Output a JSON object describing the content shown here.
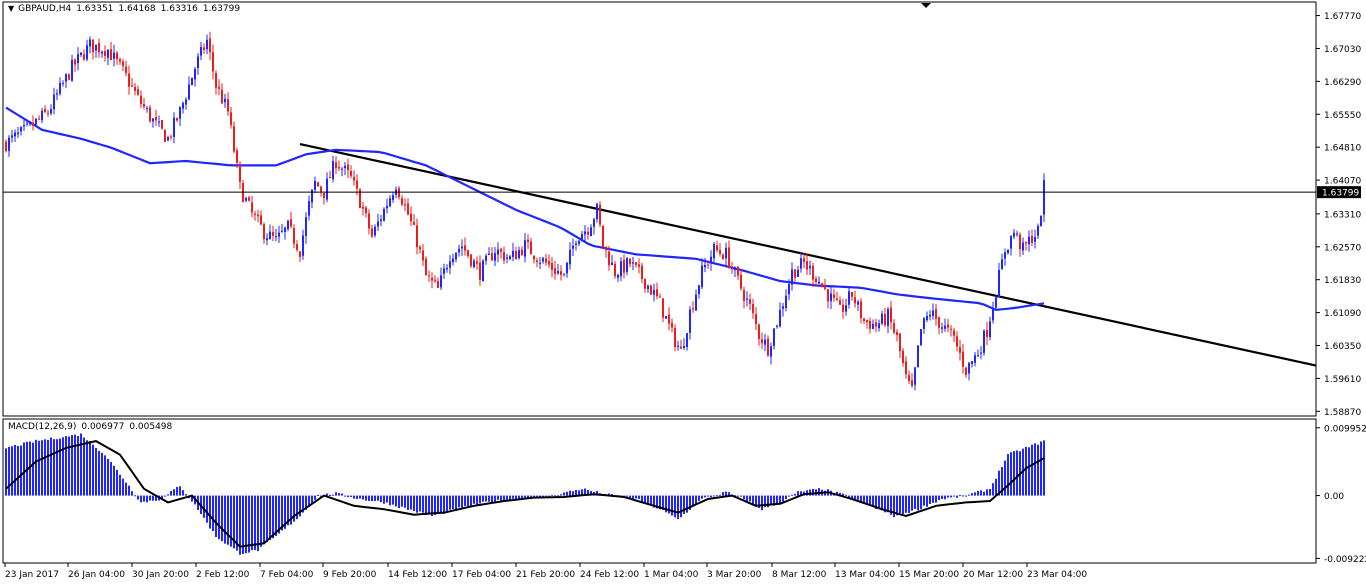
{
  "instrument": {
    "symbol_tf": "GBPAUD,H4",
    "open": "1.63351",
    "high": "1.64168",
    "low": "1.63316",
    "close": "1.63799"
  },
  "macd": {
    "label": "MACD(12,26,9)",
    "main": "0.006977",
    "signal": "0.005498"
  },
  "colors": {
    "bull": "#1f26ff",
    "bear": "#ef1c1c",
    "ma": "#1f26ff",
    "trendline": "#000000",
    "histogram": "#1f26ff",
    "signal": "#000000",
    "grid": "#000000"
  },
  "chart_data": {
    "type": "candlestick",
    "current_price": "1.63799",
    "price_axis": {
      "ticks": [
        "1.67770",
        "1.67030",
        "1.66290",
        "1.65550",
        "1.64810",
        "1.64070",
        "1.63310",
        "1.62570",
        "1.61830",
        "1.61090",
        "1.60350",
        "1.59610",
        "1.58870"
      ],
      "range": [
        1.5881,
        1.6803
      ]
    },
    "macd_axis": {
      "ticks": [
        "0.009952",
        "0.00",
        "-0.009222"
      ],
      "range": [
        -0.0096,
        0.0108
      ]
    },
    "time_axis": [
      "23 Jan 2017",
      "26 Jan 04:00",
      "30 Jan 20:00",
      "2 Feb 12:00",
      "7 Feb 04:00",
      "9 Feb 20:00",
      "14 Feb 12:00",
      "17 Feb 04:00",
      "21 Feb 20:00",
      "24 Feb 12:00",
      "1 Mar 04:00",
      "3 Mar 20:00",
      "8 Mar 12:00",
      "13 Mar 04:00",
      "15 Mar 20:00",
      "20 Mar 12:00",
      "23 Mar 04:00"
    ],
    "price_path": [
      [
        0,
        1.649
      ],
      [
        7,
        1.652
      ],
      [
        14,
        1.656
      ],
      [
        22,
        1.666
      ],
      [
        28,
        1.671
      ],
      [
        34,
        1.67
      ],
      [
        40,
        1.664
      ],
      [
        44,
        1.659
      ],
      [
        50,
        1.653
      ],
      [
        54,
        1.65
      ],
      [
        58,
        1.656
      ],
      [
        63,
        1.666
      ],
      [
        67,
        1.672
      ],
      [
        70,
        1.662
      ],
      [
        74,
        1.656
      ],
      [
        78,
        1.639
      ],
      [
        82,
        1.633
      ],
      [
        86,
        1.629
      ],
      [
        90,
        1.627
      ],
      [
        94,
        1.63
      ],
      [
        98,
        1.625
      ],
      [
        101,
        1.635
      ],
      [
        103,
        1.64
      ],
      [
        106,
        1.638
      ],
      [
        110,
        1.645
      ],
      [
        115,
        1.641
      ],
      [
        118,
        1.636
      ],
      [
        122,
        1.628
      ],
      [
        126,
        1.634
      ],
      [
        130,
        1.64
      ],
      [
        134,
        1.633
      ],
      [
        137,
        1.627
      ],
      [
        140,
        1.619
      ],
      [
        144,
        1.616
      ],
      [
        148,
        1.624
      ],
      [
        152,
        1.626
      ],
      [
        158,
        1.62
      ],
      [
        163,
        1.625
      ],
      [
        168,
        1.623
      ],
      [
        173,
        1.626
      ],
      [
        178,
        1.623
      ],
      [
        182,
        1.621
      ],
      [
        186,
        1.619
      ],
      [
        190,
        1.628
      ],
      [
        194,
        1.63
      ],
      [
        197,
        1.634
      ],
      [
        199,
        1.626
      ],
      [
        203,
        1.62
      ],
      [
        208,
        1.622
      ],
      [
        213,
        1.618
      ],
      [
        218,
        1.613
      ],
      [
        222,
        1.606
      ],
      [
        225,
        1.602
      ],
      [
        228,
        1.611
      ],
      [
        232,
        1.62
      ],
      [
        236,
        1.625
      ],
      [
        240,
        1.624
      ],
      [
        244,
        1.618
      ],
      [
        248,
        1.612
      ],
      [
        251,
        1.606
      ],
      [
        254,
        1.603
      ],
      [
        258,
        1.611
      ],
      [
        262,
        1.62
      ],
      [
        266,
        1.622
      ],
      [
        270,
        1.619
      ],
      [
        274,
        1.615
      ],
      [
        278,
        1.611
      ],
      [
        282,
        1.615
      ],
      [
        286,
        1.609
      ],
      [
        290,
        1.608
      ],
      [
        294,
        1.61
      ],
      [
        297,
        1.605
      ],
      [
        300,
        1.596
      ],
      [
        302,
        1.593
      ],
      [
        305,
        1.607
      ],
      [
        308,
        1.611
      ],
      [
        312,
        1.608
      ],
      [
        316,
        1.605
      ],
      [
        320,
        1.598
      ],
      [
        324,
        1.602
      ],
      [
        327,
        1.607
      ],
      [
        330,
        1.616
      ],
      [
        333,
        1.625
      ],
      [
        336,
        1.629
      ],
      [
        339,
        1.625
      ],
      [
        342,
        1.628
      ],
      [
        344,
        1.629
      ],
      [
        346,
        1.639
      ]
    ],
    "ma_path": [
      [
        0,
        1.657
      ],
      [
        12,
        1.652
      ],
      [
        25,
        1.65
      ],
      [
        35,
        1.648
      ],
      [
        48,
        1.6445
      ],
      [
        60,
        1.645
      ],
      [
        75,
        1.644
      ],
      [
        90,
        1.644
      ],
      [
        100,
        1.6465
      ],
      [
        110,
        1.6475
      ],
      [
        125,
        1.647
      ],
      [
        140,
        1.644
      ],
      [
        155,
        1.639
      ],
      [
        170,
        1.634
      ],
      [
        185,
        1.63
      ],
      [
        195,
        1.626
      ],
      [
        210,
        1.624
      ],
      [
        230,
        1.623
      ],
      [
        245,
        1.6205
      ],
      [
        258,
        1.618
      ],
      [
        270,
        1.617
      ],
      [
        285,
        1.6165
      ],
      [
        297,
        1.615
      ],
      [
        310,
        1.614
      ],
      [
        325,
        1.613
      ],
      [
        330,
        1.6115
      ],
      [
        337,
        1.612
      ],
      [
        346,
        1.613
      ]
    ],
    "trendline": {
      "from": [
        "7 Feb 04:00",
        1.6488
      ],
      "to": [
        "23 Mar 04:00+",
        1.599
      ]
    },
    "macd_histogram_path": [
      [
        0,
        0.007
      ],
      [
        10,
        0.008
      ],
      [
        25,
        0.009
      ],
      [
        33,
        0.006
      ],
      [
        40,
        0.002
      ],
      [
        45,
        -0.001
      ],
      [
        52,
        -0.0005
      ],
      [
        58,
        0.0015
      ],
      [
        64,
        -0.002
      ],
      [
        70,
        -0.006
      ],
      [
        78,
        -0.0085
      ],
      [
        84,
        -0.008
      ],
      [
        90,
        -0.006
      ],
      [
        98,
        -0.003
      ],
      [
        104,
        0.0
      ],
      [
        110,
        0.0003
      ],
      [
        118,
        -0.0005
      ],
      [
        126,
        -0.001
      ],
      [
        134,
        -0.002
      ],
      [
        142,
        -0.003
      ],
      [
        150,
        -0.002
      ],
      [
        160,
        -0.001
      ],
      [
        170,
        -0.0005
      ],
      [
        182,
        0.0
      ],
      [
        192,
        0.001
      ],
      [
        200,
        0.0002
      ],
      [
        210,
        -0.0005
      ],
      [
        218,
        -0.002
      ],
      [
        224,
        -0.0035
      ],
      [
        232,
        -0.0005
      ],
      [
        240,
        0.0005
      ],
      [
        246,
        -0.0005
      ],
      [
        252,
        -0.002
      ],
      [
        258,
        -0.001
      ],
      [
        264,
        0.0005
      ],
      [
        272,
        0.001
      ],
      [
        280,
        0.0
      ],
      [
        288,
        -0.0015
      ],
      [
        296,
        -0.003
      ],
      [
        304,
        -0.002
      ],
      [
        312,
        -0.0005
      ],
      [
        320,
        0.0
      ],
      [
        328,
        0.001
      ],
      [
        334,
        0.006
      ],
      [
        340,
        0.007
      ],
      [
        346,
        0.008
      ]
    ],
    "macd_signal_path": [
      [
        0,
        0.001
      ],
      [
        10,
        0.005
      ],
      [
        20,
        0.007
      ],
      [
        30,
        0.008
      ],
      [
        38,
        0.006
      ],
      [
        46,
        0.001
      ],
      [
        54,
        -0.001
      ],
      [
        62,
        0.0
      ],
      [
        70,
        -0.004
      ],
      [
        78,
        -0.0075
      ],
      [
        86,
        -0.007
      ],
      [
        96,
        -0.003
      ],
      [
        106,
        0.0
      ],
      [
        116,
        -0.0015
      ],
      [
        126,
        -0.002
      ],
      [
        136,
        -0.0028
      ],
      [
        146,
        -0.0025
      ],
      [
        156,
        -0.0015
      ],
      [
        166,
        -0.0008
      ],
      [
        176,
        -0.0003
      ],
      [
        186,
        -0.0002
      ],
      [
        196,
        0.0002
      ],
      [
        206,
        -0.0002
      ],
      [
        216,
        -0.0015
      ],
      [
        224,
        -0.0025
      ],
      [
        234,
        -0.0005
      ],
      [
        242,
        0.0
      ],
      [
        250,
        -0.0015
      ],
      [
        258,
        -0.0012
      ],
      [
        266,
        0.0002
      ],
      [
        274,
        0.0005
      ],
      [
        282,
        -0.0005
      ],
      [
        292,
        -0.002
      ],
      [
        300,
        -0.003
      ],
      [
        310,
        -0.0015
      ],
      [
        320,
        -0.001
      ],
      [
        328,
        -0.0008
      ],
      [
        334,
        0.0015
      ],
      [
        340,
        0.004
      ],
      [
        346,
        0.0055
      ]
    ]
  }
}
